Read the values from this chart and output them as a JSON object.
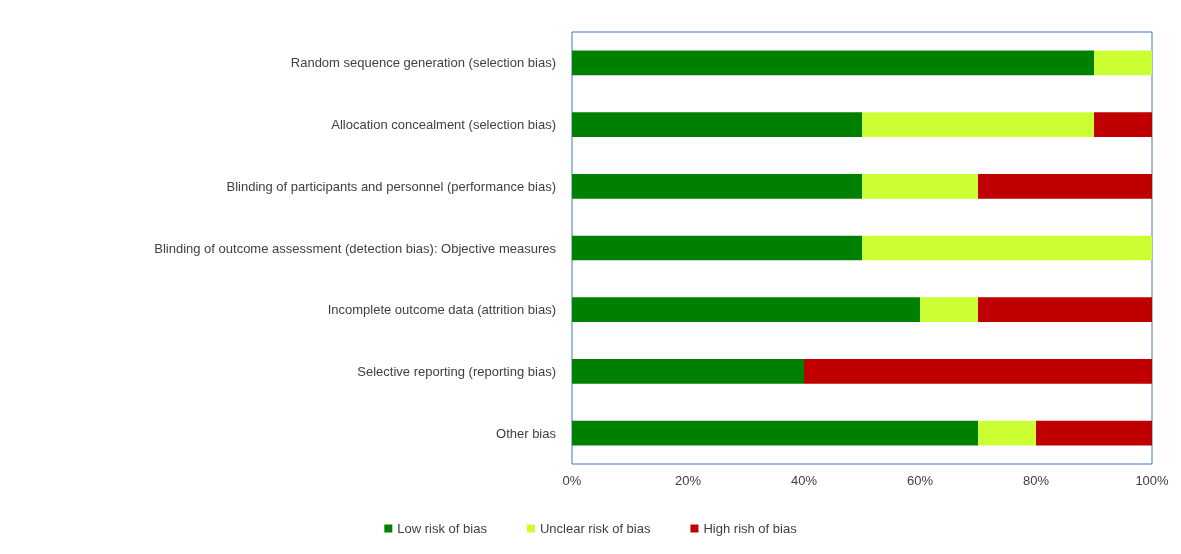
{
  "chart_data": {
    "type": "bar",
    "orientation": "horizontal",
    "stacked": true,
    "categories": [
      "Random sequence generation (selection bias)",
      "Allocation concealment (selection bias)",
      "Blinding of participants and personnel (performance bias)",
      "Blinding of outcome assessment (detection bias): Objective measures",
      "Incomplete outcome data (attrition bias)",
      "Selective reporting (reporting bias)",
      "Other bias"
    ],
    "series": [
      {
        "name": "Low risk of bias",
        "color": "#008000",
        "values": [
          90,
          50,
          50,
          50,
          60,
          40,
          70
        ]
      },
      {
        "name": "Unclear risk of bias",
        "color": "#ccff33",
        "values": [
          10,
          40,
          20,
          50,
          10,
          0,
          10
        ]
      },
      {
        "name": "High rish of bias",
        "color": "#c00000",
        "values": [
          0,
          10,
          30,
          0,
          30,
          60,
          20
        ]
      }
    ],
    "xlim": [
      0,
      100
    ],
    "xticks": [
      {
        "value": 0,
        "label": "0%"
      },
      {
        "value": 20,
        "label": "20%"
      },
      {
        "value": 40,
        "label": "40%"
      },
      {
        "value": 60,
        "label": "60%"
      },
      {
        "value": 80,
        "label": "80%"
      },
      {
        "value": 100,
        "label": "100%"
      }
    ],
    "grid": false,
    "legend": "bottom"
  }
}
